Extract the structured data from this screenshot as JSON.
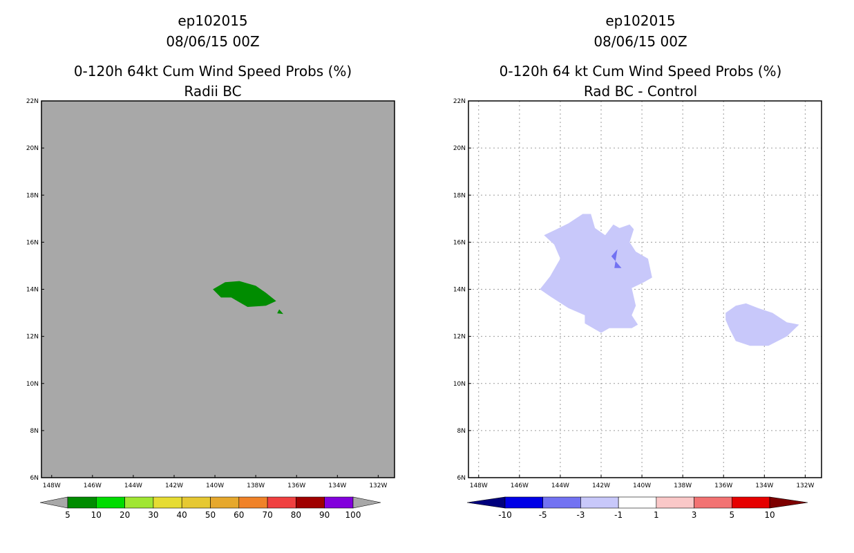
{
  "colors": {
    "background": "#ffffff",
    "left_fill": "#a8a8a8",
    "left_contour": "#008c00",
    "right_contour_light": "#c8c8fa",
    "right_contour_dark": "#7272f2"
  },
  "chart_data": [
    {
      "type": "heatmap",
      "panel": "left",
      "title_lines": [
        "ep102015",
        "08/06/15 00Z",
        "0-120h 64kt Cum Wind Speed Probs (%)",
        "Radii BC"
      ],
      "xlabel": "",
      "ylabel": "",
      "xlim": [
        -148.5,
        -131.2
      ],
      "ylim": [
        6,
        22
      ],
      "grid": false,
      "x_ticks": [
        {
          "lon": -148,
          "label": "148W"
        },
        {
          "lon": -146,
          "label": "146W"
        },
        {
          "lon": -144,
          "label": "144W"
        },
        {
          "lon": -142,
          "label": "142W"
        },
        {
          "lon": -140,
          "label": "140W"
        },
        {
          "lon": -138,
          "label": "138W"
        },
        {
          "lon": -136,
          "label": "136W"
        },
        {
          "lon": -134,
          "label": "134W"
        },
        {
          "lon": -132,
          "label": "132W"
        }
      ],
      "y_ticks": [
        {
          "lat": 6,
          "label": "6N"
        },
        {
          "lat": 8,
          "label": "8N"
        },
        {
          "lat": 10,
          "label": "10N"
        },
        {
          "lat": 12,
          "label": "12N"
        },
        {
          "lat": 14,
          "label": "14N"
        },
        {
          "lat": 16,
          "label": "16N"
        },
        {
          "lat": 18,
          "label": "18N"
        },
        {
          "lat": 20,
          "label": "20N"
        },
        {
          "lat": 22,
          "label": "22N"
        }
      ],
      "regions": [
        {
          "level": "5-10",
          "color": "#008c00",
          "polygon": [
            [
              -140.1,
              14.0
            ],
            [
              -139.5,
              14.3
            ],
            [
              -138.8,
              14.35
            ],
            [
              -138.0,
              14.15
            ],
            [
              -137.5,
              13.85
            ],
            [
              -137.0,
              13.5
            ],
            [
              -137.5,
              13.3
            ],
            [
              -138.4,
              13.25
            ],
            [
              -138.8,
              13.45
            ],
            [
              -139.2,
              13.65
            ],
            [
              -139.7,
              13.65
            ]
          ]
        },
        {
          "level": "5-10",
          "color": "#008c00",
          "polygon": [
            [
              -136.85,
              13.15
            ],
            [
              -136.65,
              12.95
            ],
            [
              -136.95,
              12.98
            ]
          ]
        }
      ],
      "colorbar": {
        "labels": [
          "5",
          "10",
          "20",
          "30",
          "40",
          "50",
          "60",
          "70",
          "80",
          "90",
          "100"
        ],
        "colors": [
          "#a8a8a8",
          "#008c00",
          "#00dc00",
          "#a0e632",
          "#e6dc32",
          "#e6c832",
          "#e6a82d",
          "#f08228",
          "#f04040",
          "#a00000",
          "#8200dc",
          "#a8a8a8"
        ]
      }
    },
    {
      "type": "heatmap",
      "panel": "right",
      "title_lines": [
        "ep102015",
        "08/06/15 00Z",
        "0-120h 64 kt Cum Wind Speed Probs (%)",
        "Rad BC - Control"
      ],
      "xlabel": "",
      "ylabel": "",
      "xlim": [
        -148.5,
        -131.2
      ],
      "ylim": [
        6,
        22
      ],
      "grid": true,
      "x_ticks": [
        {
          "lon": -148,
          "label": "148W"
        },
        {
          "lon": -146,
          "label": "146W"
        },
        {
          "lon": -144,
          "label": "144W"
        },
        {
          "lon": -142,
          "label": "142W"
        },
        {
          "lon": -140,
          "label": "140W"
        },
        {
          "lon": -138,
          "label": "138W"
        },
        {
          "lon": -136,
          "label": "136W"
        },
        {
          "lon": -134,
          "label": "134W"
        },
        {
          "lon": -132,
          "label": "132W"
        }
      ],
      "y_ticks": [
        {
          "lat": 6,
          "label": "6N"
        },
        {
          "lat": 8,
          "label": "8N"
        },
        {
          "lat": 10,
          "label": "10N"
        },
        {
          "lat": 12,
          "label": "12N"
        },
        {
          "lat": 14,
          "label": "14N"
        },
        {
          "lat": 16,
          "label": "16N"
        },
        {
          "lat": 18,
          "label": "18N"
        },
        {
          "lat": 20,
          "label": "20N"
        },
        {
          "lat": 22,
          "label": "22N"
        }
      ],
      "regions": [
        {
          "level": "-3 to -1",
          "color": "#c8c8fa",
          "polygon": [
            [
              -144.3,
              16.5
            ],
            [
              -143.6,
              16.8
            ],
            [
              -142.9,
              17.2
            ],
            [
              -142.5,
              17.2
            ],
            [
              -142.3,
              16.6
            ],
            [
              -141.8,
              16.3
            ],
            [
              -141.4,
              16.75
            ],
            [
              -141.1,
              16.6
            ],
            [
              -140.6,
              16.75
            ],
            [
              -140.4,
              16.55
            ],
            [
              -140.6,
              16.0
            ],
            [
              -140.3,
              15.6
            ],
            [
              -139.7,
              15.3
            ],
            [
              -139.5,
              14.5
            ],
            [
              -139.9,
              14.3
            ],
            [
              -140.5,
              14.05
            ],
            [
              -140.3,
              13.3
            ],
            [
              -140.5,
              12.9
            ],
            [
              -140.2,
              12.5
            ],
            [
              -140.5,
              12.35
            ],
            [
              -141.6,
              12.35
            ],
            [
              -142.0,
              12.15
            ],
            [
              -142.8,
              12.55
            ],
            [
              -142.8,
              12.9
            ],
            [
              -143.6,
              13.2
            ],
            [
              -144.5,
              13.7
            ],
            [
              -145.0,
              14.0
            ],
            [
              -144.5,
              14.55
            ],
            [
              -144.2,
              15.0
            ],
            [
              -144.0,
              15.3
            ],
            [
              -144.3,
              15.9
            ],
            [
              -144.8,
              16.3
            ]
          ]
        },
        {
          "level": "-3 to -1",
          "color": "#c8c8fa",
          "polygon": [
            [
              -135.9,
              13.0
            ],
            [
              -135.4,
              13.3
            ],
            [
              -134.9,
              13.4
            ],
            [
              -134.3,
              13.2
            ],
            [
              -133.6,
              13.0
            ],
            [
              -132.9,
              12.6
            ],
            [
              -132.3,
              12.5
            ],
            [
              -132.9,
              12.0
            ],
            [
              -133.8,
              11.6
            ],
            [
              -134.7,
              11.6
            ],
            [
              -135.4,
              11.8
            ],
            [
              -135.7,
              12.3
            ],
            [
              -135.9,
              12.7
            ]
          ]
        },
        {
          "level": "-5 to -3",
          "color": "#7272f2",
          "polygon": [
            [
              -141.2,
              15.7
            ],
            [
              -141.5,
              15.4
            ],
            [
              -141.0,
              14.9
            ],
            [
              -141.35,
              14.9
            ]
          ]
        }
      ],
      "colorbar": {
        "labels": [
          "-10",
          "-5",
          "-3",
          "-1",
          "1",
          "3",
          "5",
          "10"
        ],
        "colors": [
          "#00007d",
          "#0000e6",
          "#7272f2",
          "#c8c8fa",
          "#ffffff",
          "#fac8c8",
          "#f27272",
          "#e60000",
          "#7d0000"
        ]
      }
    }
  ]
}
